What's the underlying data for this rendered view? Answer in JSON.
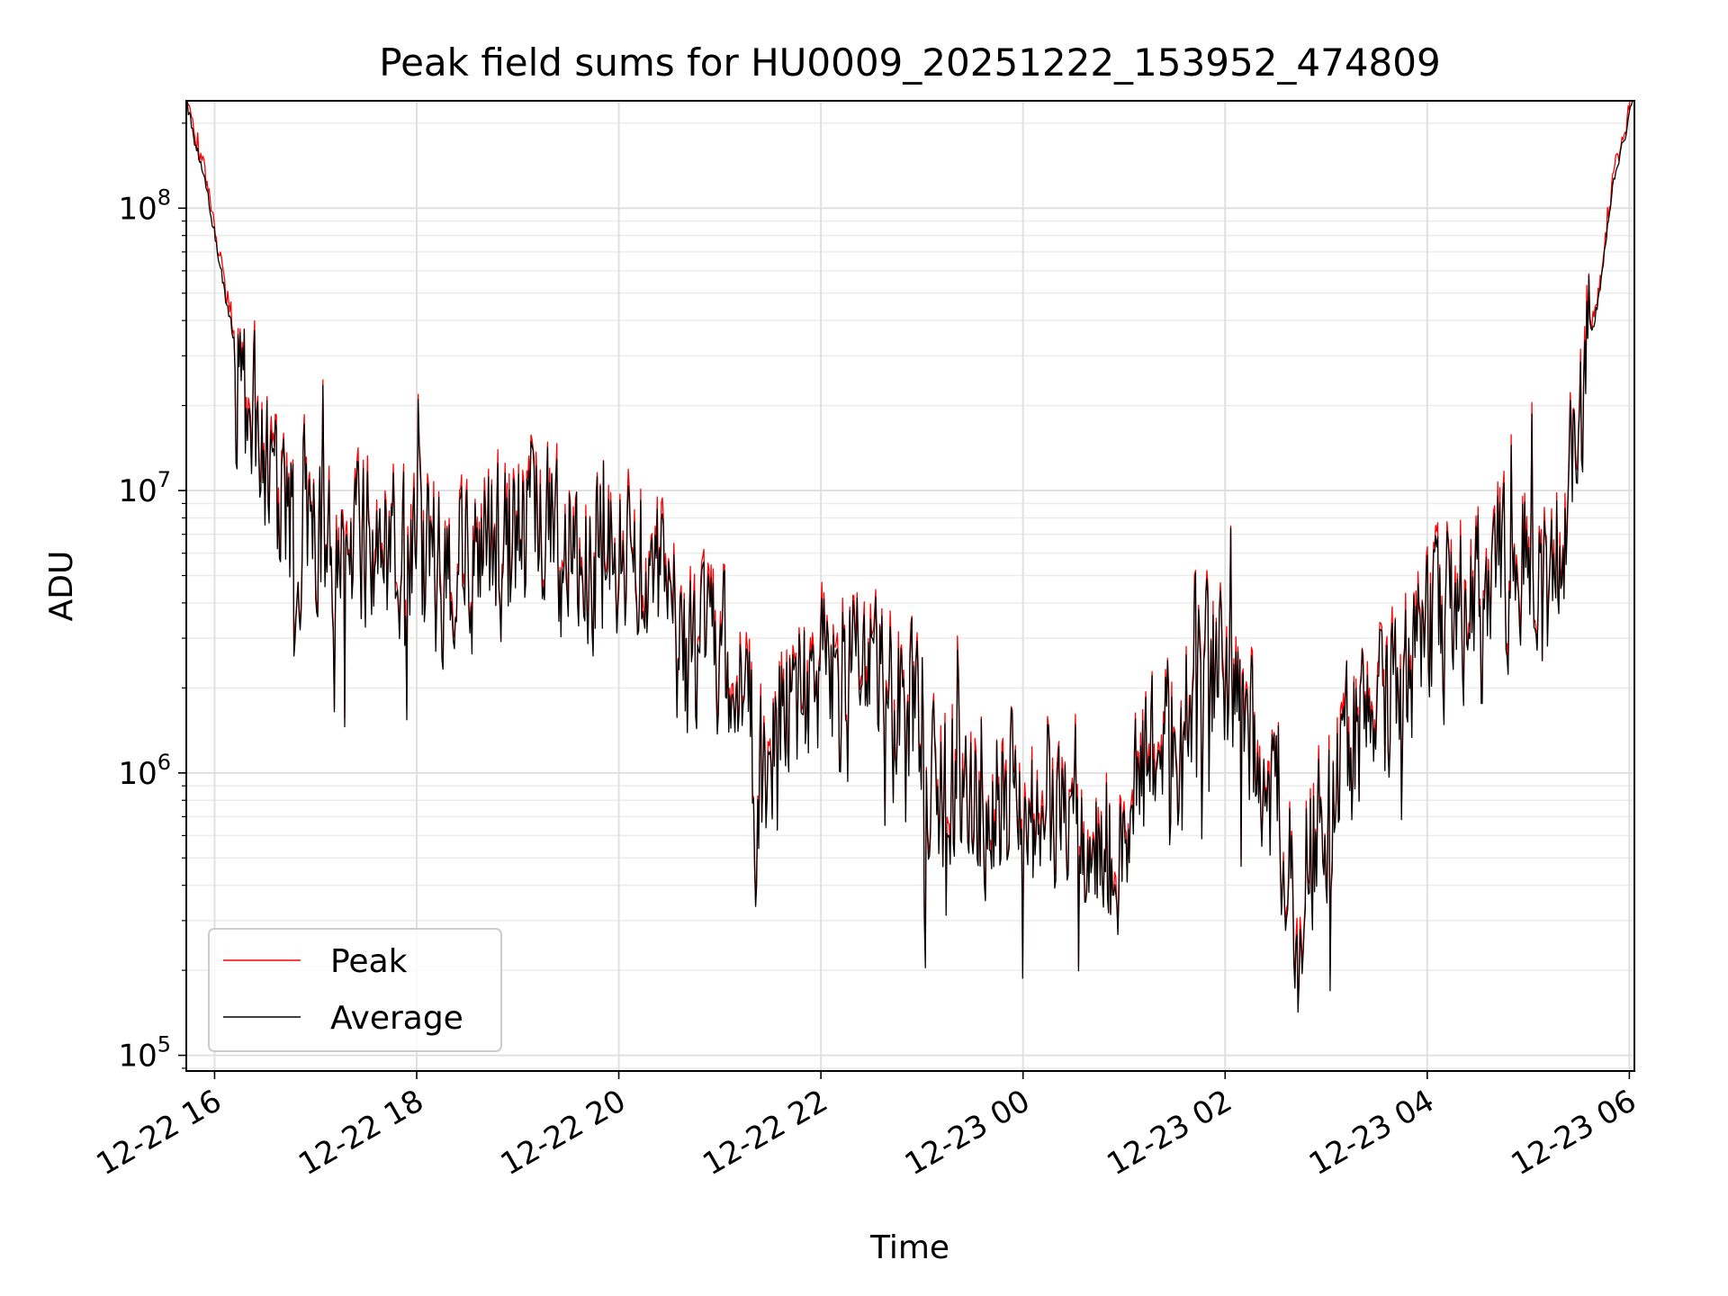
{
  "chart_data": {
    "type": "line",
    "title": "Peak field sums for HU0009_20251222_153952_474809",
    "xlabel": "Time",
    "ylabel": "ADU",
    "yscale": "log",
    "ylim": [
      88000,
      240000000
    ],
    "xlim_hours": [
      15.72,
      30.05
    ],
    "grid": true,
    "legend_position": "lower-left",
    "x_ticks": [
      {
        "hour": 16,
        "label": "12-22 16"
      },
      {
        "hour": 18,
        "label": "12-22 18"
      },
      {
        "hour": 20,
        "label": "12-22 20"
      },
      {
        "hour": 22,
        "label": "12-22 22"
      },
      {
        "hour": 24,
        "label": "12-23 00"
      },
      {
        "hour": 26,
        "label": "12-23 02"
      },
      {
        "hour": 28,
        "label": "12-23 04"
      },
      {
        "hour": 30,
        "label": "12-23 06"
      }
    ],
    "y_ticks": [
      {
        "value": 100000,
        "base": "10",
        "exp": "5"
      },
      {
        "value": 1000000,
        "base": "10",
        "exp": "6"
      },
      {
        "value": 10000000,
        "base": "10",
        "exp": "7"
      },
      {
        "value": 100000000,
        "base": "10",
        "exp": "8"
      }
    ],
    "series": [
      {
        "name": "Peak",
        "color": "#ff0000"
      },
      {
        "name": "Average",
        "color": "#000000"
      }
    ],
    "trend": {
      "x_hours": [
        15.72,
        15.8,
        15.95,
        16.1,
        16.3,
        16.6,
        16.9,
        17.2,
        17.5,
        17.8,
        18.0,
        18.3,
        18.6,
        18.9,
        19.2,
        19.5,
        19.8,
        20.1,
        20.4,
        20.7,
        21.0,
        21.3,
        21.35,
        21.5,
        22.0,
        22.3,
        22.6,
        22.9,
        23.2,
        23.5,
        23.8,
        24.1,
        24.4,
        24.7,
        24.95,
        25.2,
        25.5,
        25.8,
        26.1,
        26.4,
        26.7,
        26.95,
        27.2,
        27.5,
        27.8,
        28.1,
        28.4,
        28.7,
        29.0,
        29.2,
        29.35,
        29.5,
        29.7,
        29.85,
        30.05
      ],
      "log10_values": [
        8.38,
        8.25,
        8.02,
        7.7,
        7.32,
        7.0,
        6.85,
        6.82,
        6.78,
        6.76,
        6.75,
        6.68,
        6.72,
        6.8,
        6.88,
        6.82,
        6.78,
        6.8,
        6.65,
        6.35,
        6.45,
        6.3,
        5.85,
        6.15,
        6.3,
        6.4,
        6.32,
        6.2,
        5.95,
        5.85,
        5.9,
        5.95,
        5.88,
        5.8,
        5.65,
        6.0,
        6.2,
        6.4,
        6.3,
        6.0,
        5.55,
        5.85,
        6.05,
        6.2,
        6.35,
        6.5,
        6.6,
        6.72,
        6.7,
        6.55,
        6.9,
        7.25,
        7.7,
        8.1,
        8.4
      ]
    },
    "sample_count": 1400,
    "peak_ratio_db": 0.06,
    "seed": 474809
  }
}
